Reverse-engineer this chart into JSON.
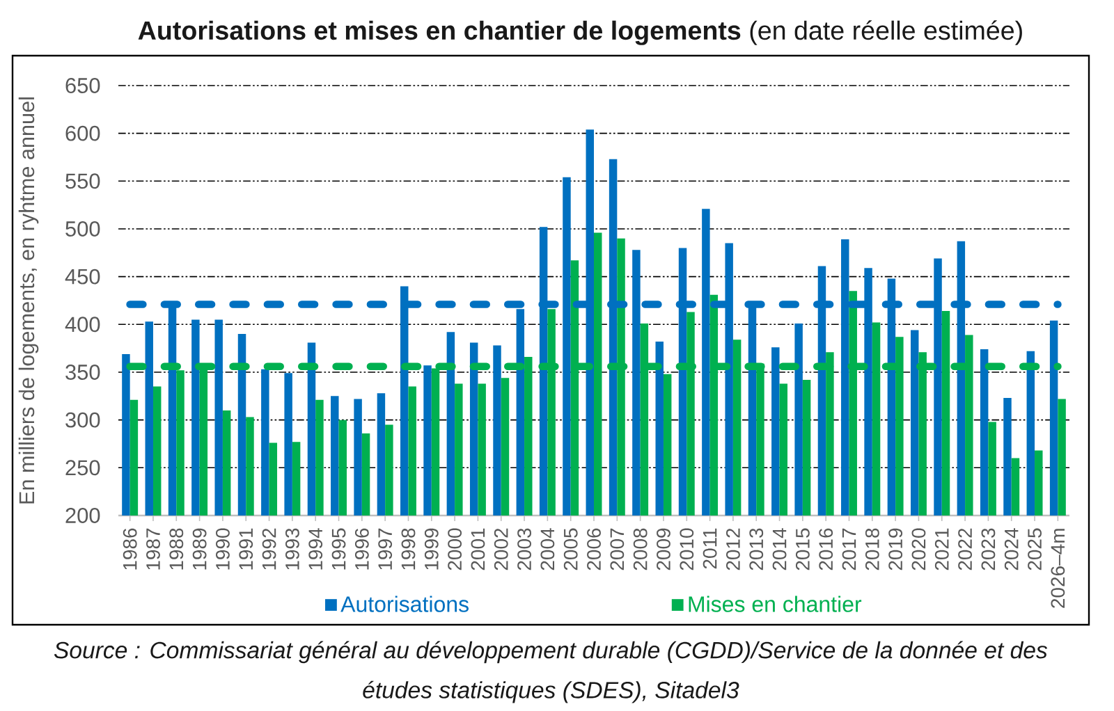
{
  "chart_data": {
    "type": "bar",
    "title": "**Autorisations et mises en chantier de logements** (en date réelle estimée)",
    "ylabel": "En milliers de logements, en ryhtme annuel",
    "categories": [
      "1986",
      "1987",
      "1988",
      "1989",
      "1990",
      "1991",
      "1992",
      "1993",
      "1994",
      "1995",
      "1996",
      "1997",
      "1998",
      "1999",
      "2000",
      "2001",
      "2002",
      "2003",
      "2004",
      "2005",
      "2006",
      "2007",
      "2008",
      "2009",
      "2010",
      "2011",
      "2012",
      "2013",
      "2014",
      "2015",
      "2016",
      "2017",
      "2018",
      "2019",
      "2020",
      "2021",
      "2022",
      "2023",
      "2024",
      "2025",
      "2026–4m"
    ],
    "series": [
      {
        "name": "Autorisations",
        "color": "#0070c0",
        "values": [
          369,
          403,
          420,
          405,
          405,
          390,
          353,
          349,
          381,
          325,
          322,
          328,
          440,
          357,
          392,
          381,
          378,
          416,
          502,
          554,
          604,
          573,
          478,
          382,
          480,
          521,
          485,
          419,
          376,
          401,
          461,
          489,
          459,
          448,
          394,
          469,
          487,
          374,
          323,
          372,
          404
        ]
      },
      {
        "name": "Mises en chantier",
        "color": "#00b050",
        "values": [
          321,
          335,
          352,
          357,
          310,
          303,
          276,
          277,
          321,
          300,
          286,
          295,
          335,
          354,
          338,
          338,
          344,
          366,
          416,
          467,
          496,
          490,
          401,
          348,
          413,
          431,
          384,
          359,
          338,
          342,
          371,
          435,
          402,
          387,
          371,
          414,
          389,
          298,
          260,
          268,
          322
        ]
      }
    ],
    "ylim": [
      200,
      650
    ],
    "yticks": [
      200,
      250,
      300,
      350,
      400,
      450,
      500,
      550,
      600,
      650
    ],
    "grid": "y",
    "legend": "bottom",
    "ref_lines": [
      {
        "axis": "y",
        "value": 421,
        "color": "#0070c0",
        "line_style": "dashed"
      },
      {
        "axis": "y",
        "value": 356,
        "color": "#00b050",
        "line_style": "dashed"
      }
    ],
    "annotations": [
      "Source : Commissariat général au développement durable (CGDD)/Service de la donnée et des études statistiques (SDES), Sitadel3"
    ]
  }
}
